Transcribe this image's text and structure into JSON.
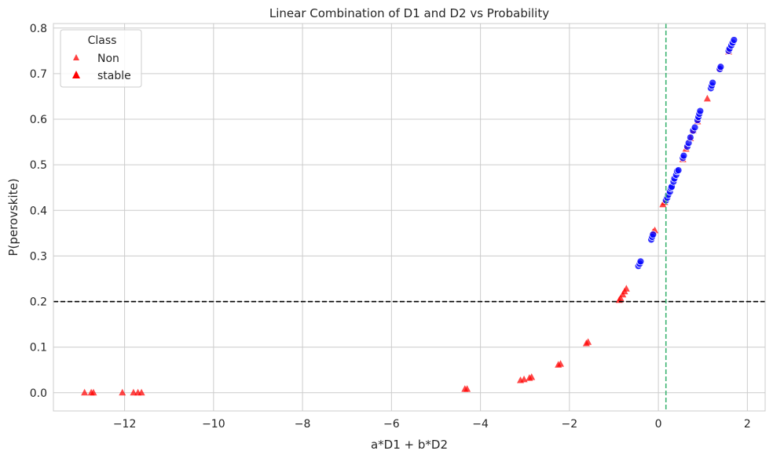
{
  "chart_data": {
    "type": "scatter",
    "title": "Linear Combination of D1 and D2 vs Probability",
    "xlabel": "a*D1 + b*D2",
    "ylabel": "P(perovskite)",
    "xlim": [
      -13.6,
      2.4
    ],
    "ylim": [
      -0.04,
      0.81
    ],
    "xticks": [
      -12,
      -10,
      -8,
      -6,
      -4,
      -2,
      0,
      2
    ],
    "xtick_labels": [
      "−12",
      "−10",
      "−8",
      "−6",
      "−4",
      "−2",
      "0",
      "2"
    ],
    "yticks": [
      0.0,
      0.1,
      0.2,
      0.3,
      0.4,
      0.5,
      0.6,
      0.7,
      0.8
    ],
    "ytick_labels": [
      "0.0",
      "0.1",
      "0.2",
      "0.3",
      "0.4",
      "0.5",
      "0.6",
      "0.7",
      "0.8"
    ],
    "grid": true,
    "legend": {
      "title": "Class",
      "placement": "top-left",
      "entries": [
        {
          "label": "Non",
          "marker": "triangle",
          "color": "#ff0000",
          "size": "small"
        },
        {
          "label": "stable",
          "marker": "triangle",
          "color": "#ff0000",
          "size": "large"
        }
      ]
    },
    "reference_lines": [
      {
        "orientation": "horizontal",
        "value": 0.2,
        "color": "#000000",
        "style": "dashed"
      },
      {
        "orientation": "vertical",
        "value": 0.17,
        "color": "#3cb371",
        "style": "dashed"
      }
    ],
    "series": [
      {
        "marker": "triangle",
        "color": "#ff0000",
        "points": [
          [
            -12.9,
            0.0
          ],
          [
            -12.75,
            0.0
          ],
          [
            -12.7,
            0.0
          ],
          [
            -12.05,
            0.0
          ],
          [
            -11.8,
            0.0
          ],
          [
            -11.7,
            0.0
          ],
          [
            -11.62,
            0.0
          ],
          [
            -4.35,
            0.008
          ],
          [
            -4.3,
            0.008
          ],
          [
            -3.1,
            0.027
          ],
          [
            -3.02,
            0.029
          ],
          [
            -2.9,
            0.032
          ],
          [
            -2.85,
            0.034
          ],
          [
            -2.25,
            0.061
          ],
          [
            -2.2,
            0.063
          ],
          [
            -1.62,
            0.108
          ],
          [
            -1.58,
            0.111
          ],
          [
            -0.88,
            0.203
          ],
          [
            -0.85,
            0.207
          ],
          [
            -0.8,
            0.215
          ],
          [
            -0.76,
            0.222
          ],
          [
            -0.72,
            0.228
          ],
          [
            -0.12,
            0.352
          ],
          [
            -0.08,
            0.356
          ],
          [
            0.1,
            0.413
          ],
          [
            0.14,
            0.418
          ],
          [
            0.55,
            0.512
          ],
          [
            0.62,
            0.535
          ],
          [
            0.72,
            0.558
          ],
          [
            0.78,
            0.575
          ],
          [
            0.88,
            0.595
          ],
          [
            1.1,
            0.645
          ],
          [
            1.38,
            0.712
          ],
          [
            1.58,
            0.748
          ]
        ]
      },
      {
        "marker": "circle",
        "color": "#0000ff",
        "points": [
          [
            -0.45,
            0.278
          ],
          [
            -0.42,
            0.283
          ],
          [
            -0.4,
            0.288
          ],
          [
            -0.16,
            0.336
          ],
          [
            -0.14,
            0.342
          ],
          [
            -0.12,
            0.347
          ],
          [
            0.17,
            0.422
          ],
          [
            0.2,
            0.428
          ],
          [
            0.22,
            0.434
          ],
          [
            0.26,
            0.441
          ],
          [
            0.28,
            0.449
          ],
          [
            0.3,
            0.452
          ],
          [
            0.34,
            0.463
          ],
          [
            0.36,
            0.47
          ],
          [
            0.4,
            0.478
          ],
          [
            0.42,
            0.486
          ],
          [
            0.45,
            0.488
          ],
          [
            0.55,
            0.515
          ],
          [
            0.57,
            0.52
          ],
          [
            0.65,
            0.54
          ],
          [
            0.68,
            0.548
          ],
          [
            0.72,
            0.56
          ],
          [
            0.78,
            0.575
          ],
          [
            0.82,
            0.582
          ],
          [
            0.88,
            0.598
          ],
          [
            0.9,
            0.605
          ],
          [
            0.92,
            0.612
          ],
          [
            0.94,
            0.618
          ],
          [
            1.18,
            0.668
          ],
          [
            1.2,
            0.674
          ],
          [
            1.22,
            0.68
          ],
          [
            1.38,
            0.71
          ],
          [
            1.4,
            0.715
          ],
          [
            1.58,
            0.75
          ],
          [
            1.6,
            0.755
          ],
          [
            1.64,
            0.762
          ],
          [
            1.67,
            0.768
          ],
          [
            1.7,
            0.774
          ]
        ]
      }
    ]
  }
}
